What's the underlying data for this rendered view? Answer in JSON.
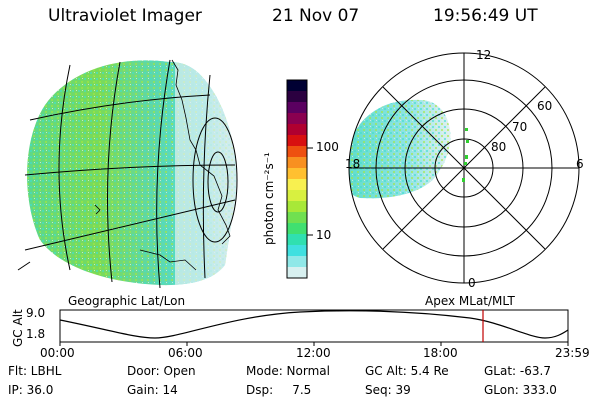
{
  "header": {
    "instrument": "Ultraviolet Imager",
    "date": "21 Nov 07",
    "time": "19:56:49 UT"
  },
  "colorbar": {
    "unit_label": "photon cm⁻²s⁻¹",
    "ticks": [
      "100",
      "10"
    ],
    "colors": [
      "#000033",
      "#2b0040",
      "#5a0060",
      "#8a0050",
      "#b00030",
      "#d81010",
      "#ee5010",
      "#f89020",
      "#ffc030",
      "#f8f050",
      "#d8f040",
      "#a8e838",
      "#70e050",
      "#40e070",
      "#30e0b0",
      "#40e0e0",
      "#90e8e8",
      "#d8f0f0"
    ]
  },
  "polar": {
    "mlt_labels": [
      "12",
      "18",
      "6",
      "0"
    ],
    "lat_labels": [
      "60",
      "70",
      "80"
    ]
  },
  "panels": {
    "left_caption": "Geographic Lat/Lon",
    "right_caption": "Apex  MLat/MLT"
  },
  "altitude_plot": {
    "axis_label": "GC Alt",
    "y_ticks": [
      "9.0",
      "1.8"
    ],
    "x_ticks": [
      "00:00",
      "06:00",
      "12:00",
      "18:00",
      "23:59"
    ],
    "marker_color": "#c00000"
  },
  "status": {
    "flt": "Flt: LBHL",
    "ip": "IP: 36.0",
    "door": "Door: Open",
    "gain": "Gain: 14",
    "mode": "Mode: Normal",
    "dsp": "Dsp:     7.5",
    "gc_alt": "GC Alt: 5.4 Re",
    "seq": "Seq: 39",
    "glat": "GLat: -63.7",
    "glon": "GLon: 333.0"
  }
}
